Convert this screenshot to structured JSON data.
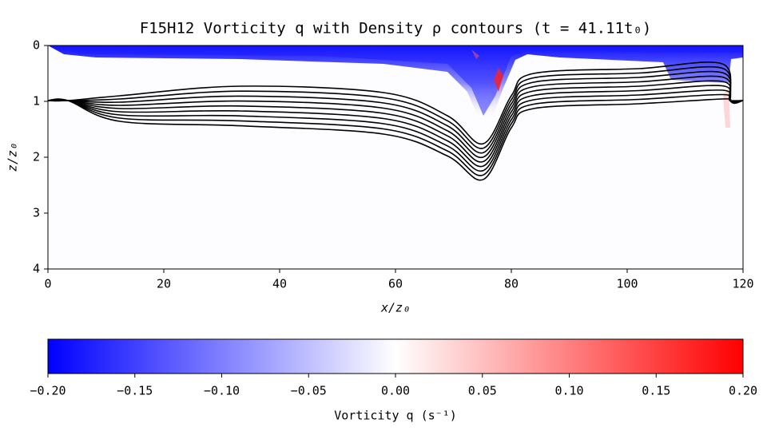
{
  "chart_data": {
    "type": "heatmap",
    "title": "F15H12 Vorticity q with Density ρ contours (t = 41.11t₀)",
    "xlabel": "x/z₀",
    "ylabel": "z/z₀",
    "xlim": [
      0,
      120
    ],
    "xticks": [
      0,
      20,
      40,
      60,
      80,
      100,
      120
    ],
    "ylim": [
      0,
      4
    ],
    "y_inverted": true,
    "yticks": [
      0,
      1,
      2,
      3,
      4
    ],
    "colorbar": {
      "label": "Vorticity q (s⁻¹)",
      "clim": [
        -0.2,
        0.2
      ],
      "colors": [
        "#0000ff",
        "#ffffff",
        "#ff0000"
      ],
      "ticks": [
        {
          "value": -0.2,
          "label": "−0.20"
        },
        {
          "value": -0.15,
          "label": "−0.15"
        },
        {
          "value": -0.1,
          "label": "−0.10"
        },
        {
          "value": -0.05,
          "label": "−0.05"
        },
        {
          "value": 0,
          "label": "0.00"
        },
        {
          "value": 0.05,
          "label": "0.05"
        },
        {
          "value": 0.1,
          "label": "0.10"
        },
        {
          "value": 0.15,
          "label": "0.15"
        },
        {
          "value": 0.2,
          "label": "0.20"
        }
      ]
    }
  }
}
